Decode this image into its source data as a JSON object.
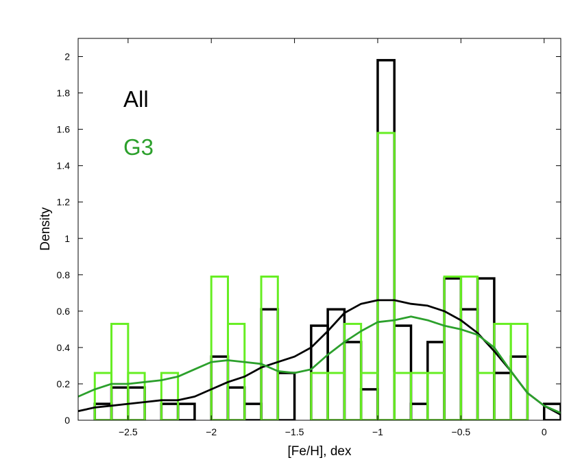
{
  "chart_data": {
    "type": "histogram",
    "xlabel": "[Fe/H], dex",
    "ylabel": "Density",
    "xlim": [
      -2.8,
      0.1
    ],
    "ylim": [
      0,
      2.1
    ],
    "xticks": [
      -2.5,
      -2,
      -1.5,
      -1,
      -0.5,
      0
    ],
    "xtick_labels": [
      "−2.5",
      "−2",
      "−1.5",
      "−1",
      "−0.5",
      "0"
    ],
    "yticks": [
      0,
      0.2,
      0.4,
      0.6,
      0.8,
      1,
      1.2,
      1.4,
      1.6,
      1.8,
      2
    ],
    "ytick_labels": [
      "0",
      "0.2",
      "0.4",
      "0.6",
      "0.8",
      "1",
      "1.2",
      "1.4",
      "1.6",
      "1.8",
      "2"
    ],
    "bin_width": 0.1,
    "legend": [
      {
        "label": "All",
        "color": "#000000"
      },
      {
        "label": "G3",
        "color": "#2ca02c"
      }
    ],
    "series": [
      {
        "name": "All",
        "kind": "histogram",
        "color": "#000000",
        "bin_edges_start": -2.7,
        "values": [
          0.09,
          0.18,
          0.18,
          0.0,
          0.09,
          0.09,
          0.0,
          0.35,
          0.18,
          0.09,
          0.61,
          0.26,
          0.0,
          0.52,
          0.61,
          0.43,
          0.17,
          1.98,
          0.52,
          0.09,
          0.43,
          0.78,
          0.61,
          0.78,
          0.26,
          0.35,
          0.0,
          0.09
        ]
      },
      {
        "name": "G3",
        "kind": "histogram",
        "color": "#66ee22",
        "bin_edges_start": -2.7,
        "values": [
          0.26,
          0.53,
          0.26,
          0.0,
          0.26,
          0.0,
          0.0,
          0.79,
          0.53,
          0.0,
          0.79,
          0.0,
          0.0,
          0.26,
          0.26,
          0.53,
          0.26,
          1.58,
          0.26,
          0.26,
          0.26,
          0.79,
          0.79,
          0.26,
          0.53,
          0.53
        ]
      },
      {
        "name": "All",
        "kind": "density",
        "color": "#000000",
        "x": [
          -2.8,
          -2.7,
          -2.6,
          -2.5,
          -2.4,
          -2.3,
          -2.2,
          -2.1,
          -2.0,
          -1.9,
          -1.8,
          -1.7,
          -1.6,
          -1.5,
          -1.4,
          -1.3,
          -1.2,
          -1.1,
          -1.0,
          -0.9,
          -0.8,
          -0.7,
          -0.6,
          -0.5,
          -0.4,
          -0.3,
          -0.2,
          -0.1,
          0.0,
          0.1
        ],
        "y": [
          0.05,
          0.07,
          0.08,
          0.09,
          0.1,
          0.11,
          0.11,
          0.13,
          0.17,
          0.21,
          0.24,
          0.29,
          0.32,
          0.35,
          0.4,
          0.49,
          0.59,
          0.64,
          0.66,
          0.66,
          0.64,
          0.63,
          0.6,
          0.55,
          0.48,
          0.38,
          0.27,
          0.15,
          0.08,
          0.03
        ]
      },
      {
        "name": "G3",
        "kind": "density",
        "color": "#2ca02c",
        "x": [
          -2.8,
          -2.7,
          -2.6,
          -2.5,
          -2.4,
          -2.3,
          -2.2,
          -2.1,
          -2.0,
          -1.9,
          -1.8,
          -1.7,
          -1.6,
          -1.5,
          -1.4,
          -1.3,
          -1.2,
          -1.1,
          -1.0,
          -0.9,
          -0.8,
          -0.7,
          -0.6,
          -0.5,
          -0.4,
          -0.3,
          -0.2,
          -0.1,
          0.0,
          0.1
        ],
        "y": [
          0.13,
          0.17,
          0.2,
          0.2,
          0.21,
          0.22,
          0.24,
          0.28,
          0.32,
          0.33,
          0.32,
          0.31,
          0.27,
          0.26,
          0.28,
          0.36,
          0.43,
          0.49,
          0.54,
          0.55,
          0.57,
          0.55,
          0.52,
          0.5,
          0.47,
          0.4,
          0.27,
          0.15,
          0.08,
          0.04
        ]
      }
    ]
  }
}
